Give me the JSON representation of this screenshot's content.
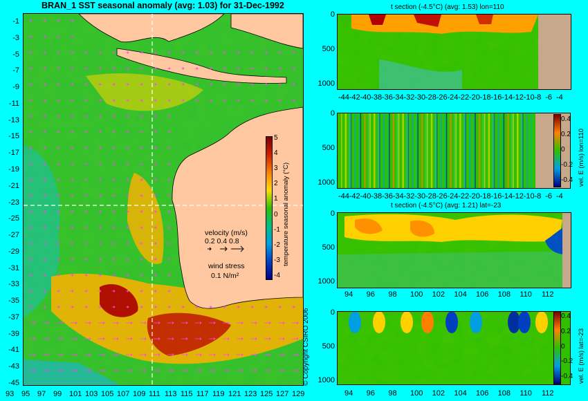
{
  "title": "BRAN_1  SST seasonal anomaly (avg: 1.03) for 31-Dec-1992",
  "copyright": "© Copyright CSIRO 2006",
  "colors": {
    "background": "#00ffff",
    "land": "#ffc8a0",
    "bathy_land": "#c8a88a",
    "vectors": "#ff40ff",
    "crosshair": "#ffffff"
  },
  "chart_data": [
    {
      "type": "heatmap",
      "id": "map",
      "title": "BRAN_1  SST seasonal anomaly (avg: 1.03) for 31-Dec-1992",
      "x_ticks": [
        "93",
        "95",
        "97",
        "99",
        "101",
        "103",
        "105",
        "107",
        "109",
        "111",
        "113",
        "115",
        "117",
        "119",
        "121",
        "123",
        "125",
        "127",
        "129"
      ],
      "y_ticks": [
        "-1",
        "-3",
        "-5",
        "-7",
        "-9",
        "-11",
        "-13",
        "-15",
        "-17",
        "-19",
        "-21",
        "-23",
        "-25",
        "-27",
        "-29",
        "-31",
        "-33",
        "-35",
        "-37",
        "-39",
        "-41",
        "-43",
        "-45"
      ],
      "xlim": [
        93,
        130
      ],
      "ylim": [
        -45,
        0
      ],
      "colorbar": {
        "label": "temperature seasonal anomaly (°C)",
        "ticks": [
          "5",
          "4",
          "3",
          "2",
          "1",
          "0",
          "-1",
          "-2",
          "-3",
          "-4"
        ],
        "range": [
          -4,
          5
        ]
      },
      "legend": {
        "velocity_label": "velocity (m/s)",
        "velocity_values": "0.2 0.4 0.8",
        "wind_label": "wind stress",
        "wind_value": "0.1 N/m²"
      },
      "crosshair": {
        "lon": 110,
        "lat": -23
      }
    },
    {
      "type": "heatmap",
      "id": "t-section-lon",
      "title": "t section (-4.5°C) (avg: 1.53) lon=110",
      "x_ticks": [
        "-44",
        "-42",
        "-40",
        "-38",
        "-36",
        "-34",
        "-32",
        "-30",
        "-28",
        "-26",
        "-24",
        "-22",
        "-20",
        "-18",
        "-16",
        "-14",
        "-12",
        "-10",
        "-8",
        "-6",
        "-4"
      ],
      "y_ticks": [
        "0",
        "500",
        "1000"
      ],
      "xlim": [
        -45,
        -2
      ],
      "ylim": [
        0,
        1050
      ]
    },
    {
      "type": "heatmap",
      "id": "vel-section-lon",
      "title": "",
      "x_ticks": [
        "-44",
        "-42",
        "-40",
        "-38",
        "-36",
        "-34",
        "-32",
        "-30",
        "-28",
        "-26",
        "-24",
        "-22",
        "-20",
        "-18",
        "-16",
        "-14",
        "-12",
        "-10",
        "-8",
        "-6",
        "-4"
      ],
      "y_ticks": [
        "0",
        "500",
        "1000"
      ],
      "colorbar": {
        "label": "vel. E (m/s) lon=110",
        "ticks": [
          "0.4",
          "0.2",
          "0",
          "-0.2",
          "-0.4"
        ]
      }
    },
    {
      "type": "heatmap",
      "id": "t-section-lat",
      "title": "t section (-4.5°C) (avg: 1.21) lat=-23",
      "x_ticks": [
        "94",
        "96",
        "98",
        "100",
        "102",
        "104",
        "106",
        "108",
        "110",
        "112"
      ],
      "y_ticks": [
        "0",
        "500",
        "1000"
      ],
      "xlim": [
        93,
        114
      ],
      "ylim": [
        0,
        1050
      ]
    },
    {
      "type": "heatmap",
      "id": "vel-section-lat",
      "title": "",
      "x_ticks": [
        "94",
        "96",
        "98",
        "100",
        "102",
        "104",
        "106",
        "108",
        "110",
        "112"
      ],
      "y_ticks": [
        "0",
        "500",
        "1000"
      ],
      "colorbar": {
        "label": "vel. E (m/s) lat=-23",
        "ticks": [
          "0.4",
          "0.2",
          "0",
          "-0.2",
          "-0.4"
        ]
      }
    }
  ]
}
